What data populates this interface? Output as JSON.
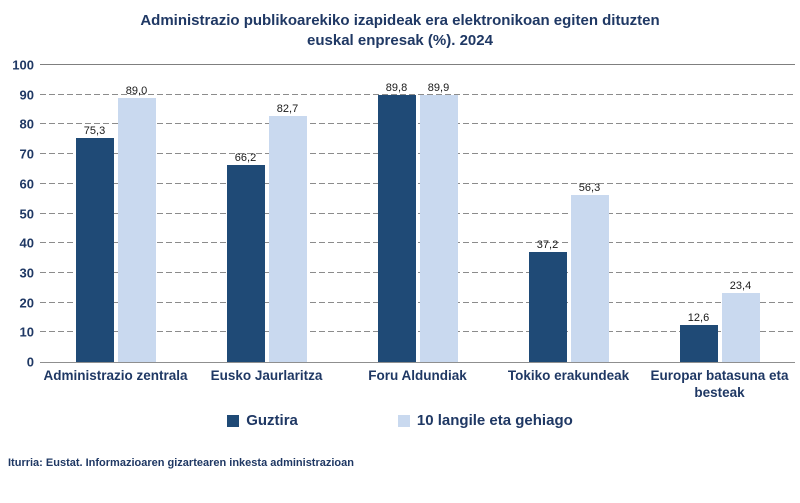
{
  "title_lines": [
    "Administrazio publikoarekiko izapideak era elektronikoan egiten dituzten",
    "euskal enpresak (%). 2024"
  ],
  "colors": {
    "series_dark": "#1f4a76",
    "series_light": "#c9d9ef",
    "text_navy": "#1f3864",
    "gridline": "#8c8c8c",
    "data_label": "#1a1a1a"
  },
  "chart_data": {
    "type": "bar",
    "categories": [
      "Administrazio zentrala",
      "Eusko Jaurlaritza",
      "Foru Aldundiak",
      "Tokiko erakundeak",
      "Europar batasuna eta besteak"
    ],
    "series": [
      {
        "name": "Guztira",
        "color": "#1f4a76",
        "values": [
          75.3,
          66.2,
          89.8,
          37.2,
          12.6
        ],
        "labels": [
          "75,3",
          "66,2",
          "89,8",
          "37,2",
          "12,6"
        ]
      },
      {
        "name": "10 langile eta gehiago",
        "color": "#c9d9ef",
        "values": [
          89.0,
          82.7,
          89.9,
          56.3,
          23.4
        ],
        "labels": [
          "89,0",
          "82,7",
          "89,9",
          "56,3",
          "23,4"
        ]
      }
    ],
    "ylim": [
      0,
      100
    ],
    "yticks": [
      0,
      10,
      20,
      30,
      40,
      50,
      60,
      70,
      80,
      90,
      100
    ],
    "grid": true,
    "legend_position": "bottom",
    "xlabel": "",
    "ylabel": ""
  },
  "footer": {
    "source": "Iturria: Eustat. Informazioaren gizartearen inkesta administrazioan"
  }
}
